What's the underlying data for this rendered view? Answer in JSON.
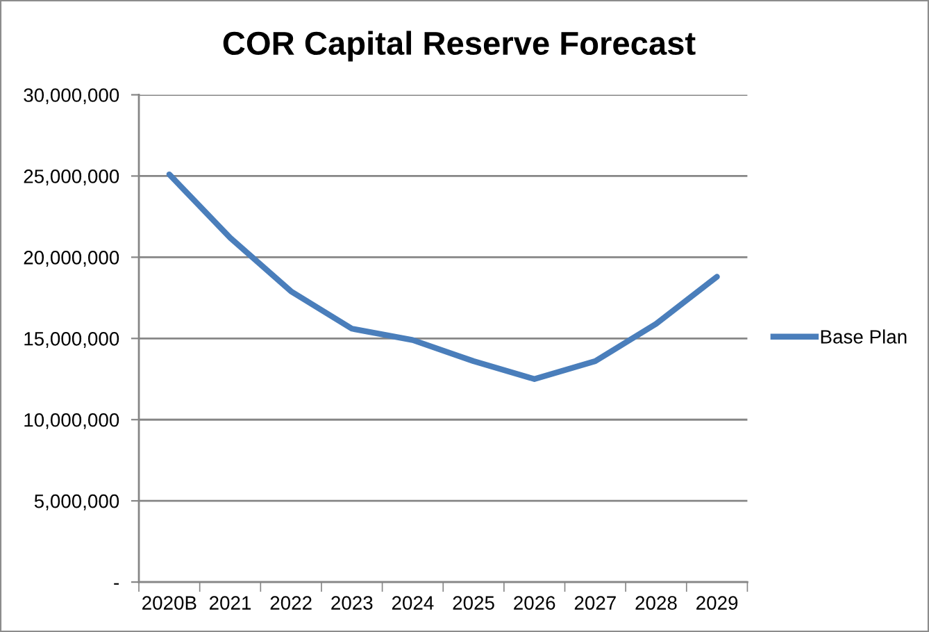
{
  "chart_data": {
    "type": "line",
    "title": "COR Capital Reserve Forecast",
    "categories": [
      "2020B",
      "2021",
      "2022",
      "2023",
      "2024",
      "2025",
      "2026",
      "2027",
      "2028",
      "2029"
    ],
    "series": [
      {
        "name": "Base Plan",
        "color": "#4a7ebb",
        "values": [
          25100000,
          21200000,
          17900000,
          15600000,
          14900000,
          13600000,
          12500000,
          13600000,
          15900000,
          18800000
        ]
      }
    ],
    "ylim": [
      0,
      30000000
    ],
    "yticks": [
      {
        "value": 0,
        "label": "-"
      },
      {
        "value": 5000000,
        "label": "5,000,000"
      },
      {
        "value": 10000000,
        "label": "10,000,000"
      },
      {
        "value": 15000000,
        "label": "15,000,000"
      },
      {
        "value": 20000000,
        "label": "20,000,000"
      },
      {
        "value": 25000000,
        "label": "25,000,000"
      },
      {
        "value": 30000000,
        "label": "30,000,000"
      }
    ],
    "grid": "y",
    "legend": "right",
    "line_style": "solid"
  }
}
